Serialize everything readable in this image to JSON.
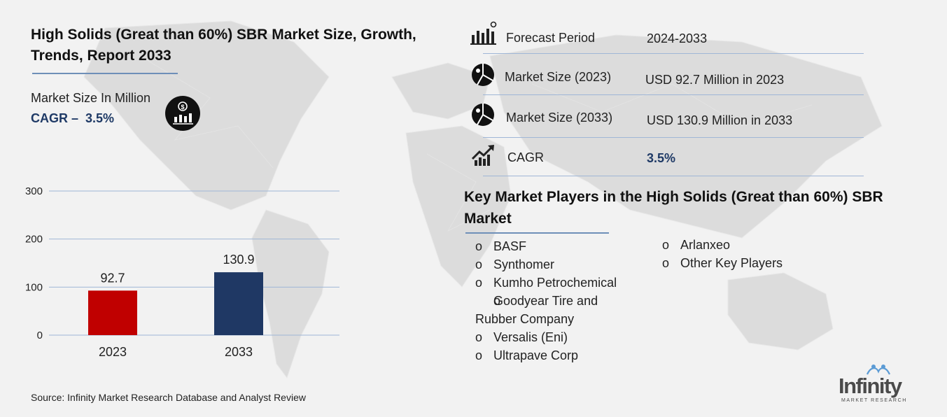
{
  "title": "High Solids (Great than 60%) SBR Market Size, Growth, Trends, Report 2033",
  "market_size_label": "Market Size In Million",
  "cagr_prefix": "CAGR –",
  "cagr_value": "3.5%",
  "source": "Source: Infinity Market Research Database and Analyst Review",
  "stats": [
    {
      "icon": "bar-chart-pin-icon",
      "label": "Forecast Period",
      "value": "2024-2033"
    },
    {
      "icon": "pie-chart-icon",
      "label": "Market Size (2023)",
      "value": "USD 92.7 Million in 2023"
    },
    {
      "icon": "pie-chart-icon",
      "label": "Market Size (2033)",
      "value": "USD 130.9 Million in 2033"
    },
    {
      "icon": "growth-arrow-icon",
      "label": "CAGR",
      "value": "3.5%"
    }
  ],
  "key_players_title": "Key Market Players in the High Solids (Great than 60%) SBR Market",
  "bullet": "o",
  "players_left": [
    "BASF",
    "Synthomer",
    "Kumho Petrochemical",
    "Goodyear Tire and Rubber Company",
    "Versalis (Eni)",
    "Ultrapave Corp"
  ],
  "players_right": [
    "Arlanxeo",
    "Other Key Players"
  ],
  "logo": {
    "word": "Infinity",
    "sub": "MARKET RESEARCH"
  },
  "colors": {
    "bar_2023": "#c00000",
    "bar_2033": "#1f3864",
    "accent_text": "#1f3a66",
    "rule": "#6e8fb8"
  },
  "chart_data": {
    "type": "bar",
    "categories": [
      "2023",
      "2033"
    ],
    "values": [
      92.7,
      130.9
    ],
    "value_labels": [
      "92.7",
      "130.9"
    ],
    "ylim": [
      0,
      300
    ],
    "yticks": [
      0,
      100,
      200,
      300
    ],
    "grid": true,
    "title": "",
    "xlabel": "",
    "ylabel": ""
  }
}
